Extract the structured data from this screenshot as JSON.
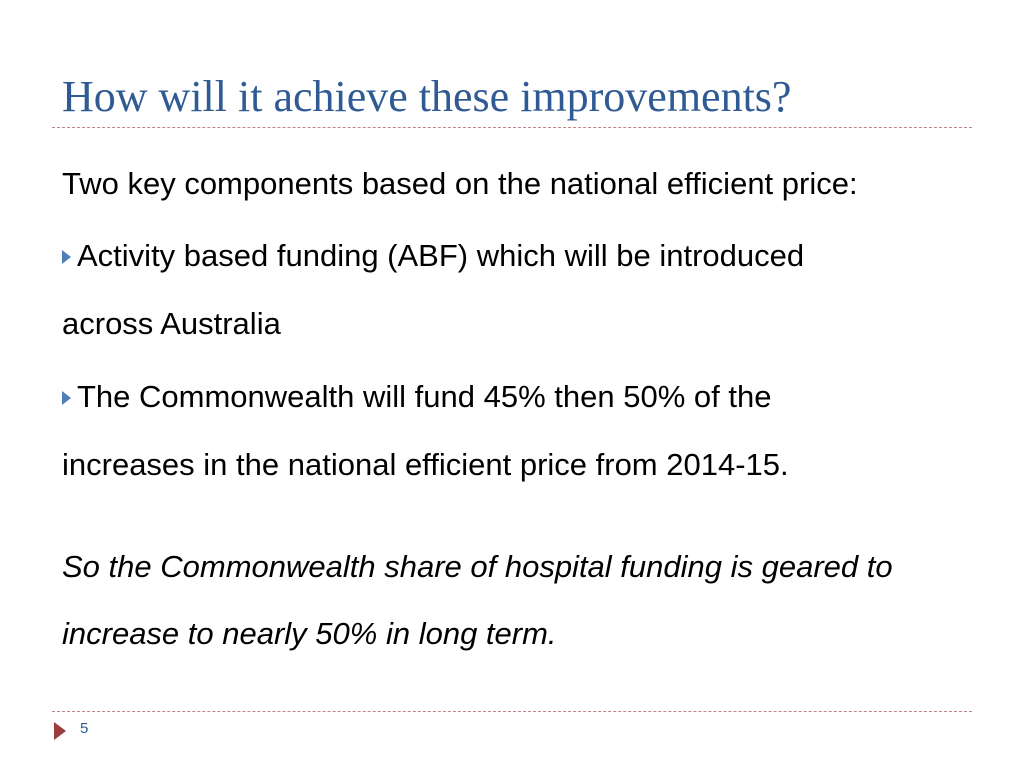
{
  "slide": {
    "title": "How will it achieve these improvements?",
    "intro": "Two key components based on the national efficient price:",
    "bullets": [
      {
        "line1": "Activity based funding (ABF) which will be introduced",
        "line2": "across Australia"
      },
      {
        "line1": "The Commonwealth will fund 45% then 50% of the",
        "line2": "increases in the national efficient price from 2014-15."
      }
    ],
    "conclusion": {
      "line1": "So the Commonwealth share of hospital funding is geared to",
      "line2": "increase to nearly 50% in long term."
    },
    "page_number": "5"
  },
  "icons": {
    "bullet_marker": "triangle-right-icon",
    "footer_marker": "triangle-right-icon"
  },
  "colors": {
    "title": "#2f5a93",
    "rule": "#c18484",
    "bullet": "#4f7fb8",
    "footer_arrow": "#9b3d3d",
    "page_number": "#2f5a93"
  }
}
